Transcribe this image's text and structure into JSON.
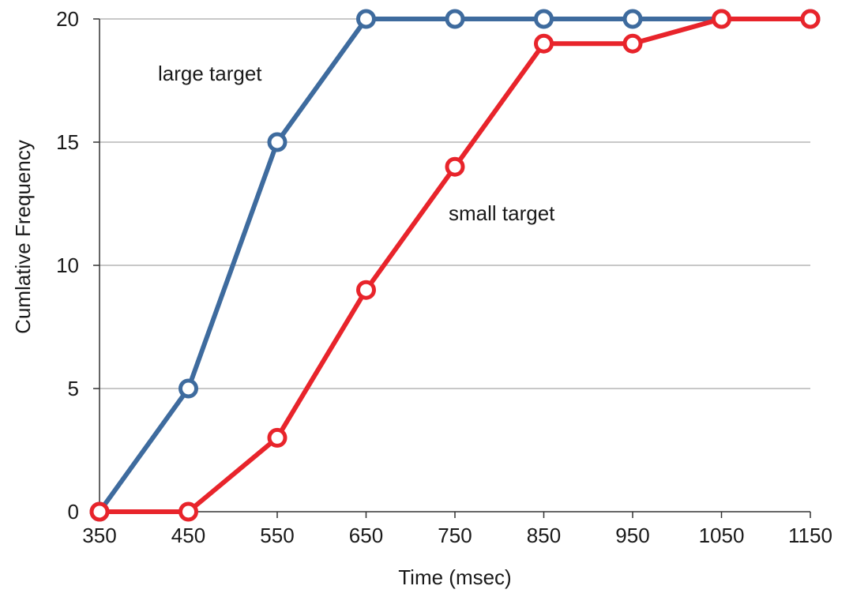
{
  "chart_data": {
    "type": "line",
    "xlabel": "Time (msec)",
    "ylabel": "Cumlative Frequency",
    "x": [
      350,
      450,
      550,
      650,
      750,
      850,
      950,
      1050,
      1150
    ],
    "xlim": [
      350,
      1150
    ],
    "ylim": [
      0,
      20
    ],
    "x_ticks": [
      "350",
      "450",
      "550",
      "650",
      "750",
      "850",
      "950",
      "1050",
      "1150"
    ],
    "y_ticks": [
      "0",
      "5",
      "10",
      "15",
      "20"
    ],
    "y_tick_values": [
      0,
      5,
      10,
      15,
      20
    ],
    "grid": "horizontal",
    "series": [
      {
        "name": "large target",
        "color": "#3e6b9e",
        "values": [
          0,
          5,
          15,
          20,
          20,
          20,
          20,
          20,
          20
        ]
      },
      {
        "name": "small target",
        "color": "#e8242b",
        "values": [
          0,
          0,
          3,
          9,
          14,
          19,
          19,
          20,
          20
        ]
      }
    ]
  }
}
